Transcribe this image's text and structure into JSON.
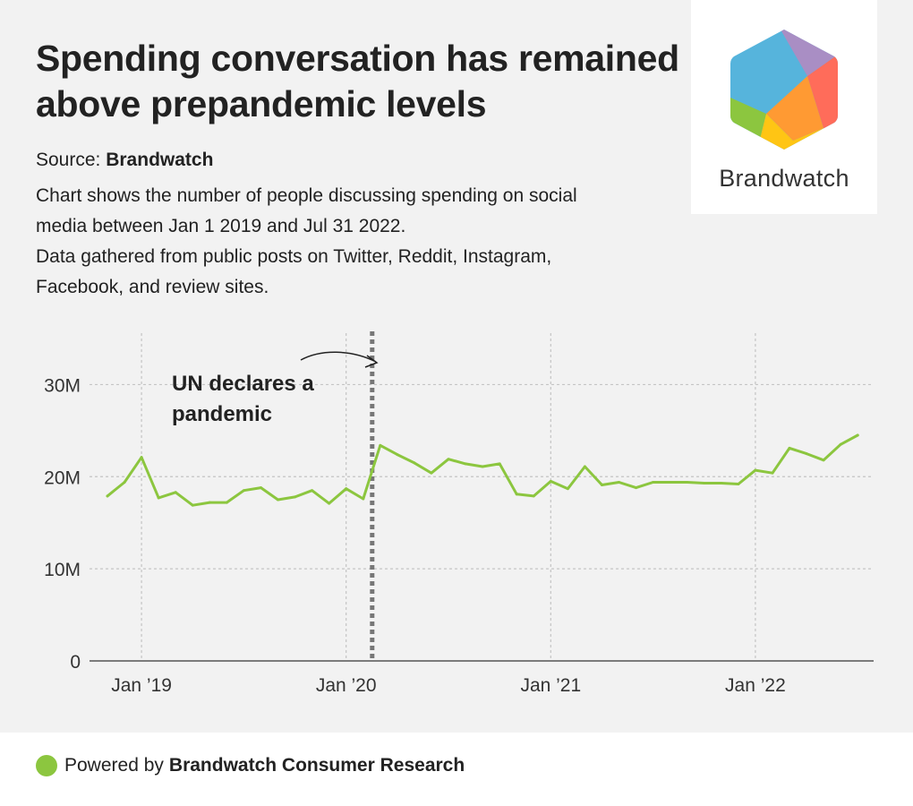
{
  "header": {
    "title_line1": "Spending conversation has remained",
    "title_line2": "above prepandemic levels",
    "source_label": "Source:",
    "source_name": "Brandwatch",
    "desc_line1": "Chart shows the number of people discussing spending on social",
    "desc_line2": "media between Jan 1 2019 and Jul 31 2022.",
    "desc_line3": "Data gathered from public posts on Twitter, Reddit, Instagram,",
    "desc_line4": "Facebook, and review sites."
  },
  "logo": {
    "wordmark": "Brandwatch",
    "colors": {
      "blue": "#56b4dc",
      "purple": "#a98ec4",
      "red": "#ff6c5a",
      "orange": "#ff9a33",
      "yellow": "#ffc514",
      "green": "#8cc63f"
    }
  },
  "footer": {
    "prefix": "Powered by",
    "brand": "Brandwatch Consumer Research",
    "dot_color": "#8cc63f"
  },
  "chart_data": {
    "type": "line",
    "title": "",
    "xlabel": "",
    "ylabel": "",
    "ylim": [
      0,
      35000000
    ],
    "yticks": [
      0,
      10000000,
      20000000,
      30000000
    ],
    "ytick_labels": [
      "0",
      "10M",
      "20M",
      "30M"
    ],
    "xticks": [
      "Jan '19",
      "Jan '20",
      "Jan '21",
      "Jan '22"
    ],
    "xtick_labels": [
      "Jan ’19",
      "Jan ’20",
      "Jan ’21",
      "Jan ’22"
    ],
    "grid": true,
    "series": [
      {
        "name": "People discussing spending",
        "color": "#8cc63f",
        "x": [
          "Nov '18",
          "Dec '18",
          "Jan '19",
          "Feb '19",
          "Mar '19",
          "Apr '19",
          "May '19",
          "Jun '19",
          "Jul '19",
          "Aug '19",
          "Sep '19",
          "Oct '19",
          "Nov '19",
          "Dec '19",
          "Jan '20",
          "Feb '20",
          "Mar '20",
          "Apr '20",
          "May '20",
          "Jun '20",
          "Jul '20",
          "Aug '20",
          "Sep '20",
          "Oct '20",
          "Nov '20",
          "Dec '20",
          "Jan '21",
          "Feb '21",
          "Mar '21",
          "Apr '21",
          "May '21",
          "Jun '21",
          "Jul '21",
          "Aug '21",
          "Sep '21",
          "Oct '21",
          "Nov '21",
          "Dec '21",
          "Jan '22",
          "Feb '22",
          "Mar '22",
          "Apr '22",
          "May '22",
          "Jun '22",
          "Jul '22"
        ],
        "values": [
          17900000,
          19400000,
          22100000,
          17700000,
          18300000,
          16900000,
          17200000,
          17200000,
          18500000,
          18800000,
          17500000,
          17800000,
          18500000,
          17100000,
          18700000,
          17600000,
          23400000,
          22400000,
          21500000,
          20400000,
          21900000,
          21400000,
          21100000,
          21400000,
          18100000,
          17900000,
          19500000,
          18700000,
          21100000,
          19100000,
          19400000,
          18800000,
          19400000,
          19400000,
          19400000,
          19300000,
          19300000,
          19200000,
          20700000,
          20400000,
          23100000,
          22500000,
          21800000,
          23500000,
          24500000
        ]
      }
    ],
    "annotations": [
      {
        "label_line1": "UN declares a",
        "label_line2": "pandemic",
        "x": "Mar '20",
        "style": "vertical-dashed-line"
      }
    ]
  }
}
